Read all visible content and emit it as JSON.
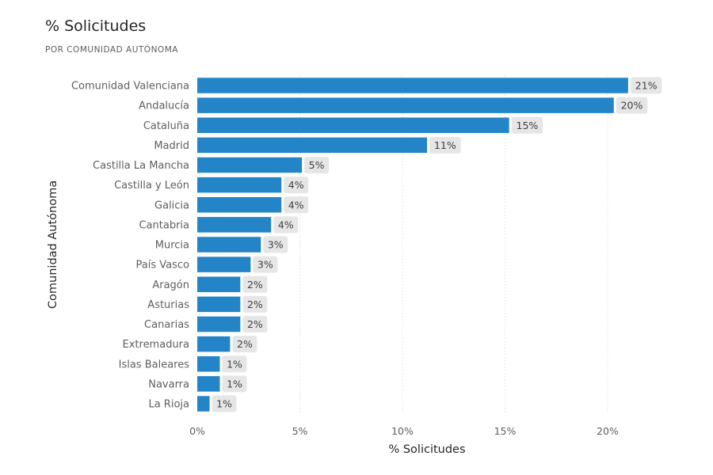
{
  "title": "% Solicitudes",
  "subtitle": "POR COMUNIDAD AUTÓNOMA",
  "colors": {
    "bar": "#2384c8",
    "label_bg": "#e6e6e6",
    "grid": "#e1e1e1"
  },
  "chart_data": {
    "type": "bar",
    "orientation": "horizontal",
    "categories": [
      "Comunidad Valenciana",
      "Andalucía",
      "Cataluña",
      "Madrid",
      "Castilla La Mancha",
      "Castilla y León",
      "Galicia",
      "Cantabria",
      "Murcia",
      "País Vasco",
      "Aragón",
      "Asturias",
      "Canarias",
      "Extremadura",
      "Islas Baleares",
      "Navarra",
      "La Rioja"
    ],
    "values": [
      21.0,
      20.3,
      15.2,
      11.2,
      5.1,
      4.1,
      4.1,
      3.6,
      3.1,
      2.6,
      2.1,
      2.1,
      2.1,
      1.6,
      1.1,
      1.1,
      0.6
    ],
    "data_labels": [
      "21%",
      "20%",
      "15%",
      "11%",
      "5%",
      "4%",
      "4%",
      "4%",
      "3%",
      "3%",
      "2%",
      "2%",
      "2%",
      "2%",
      "1%",
      "1%",
      "1%"
    ],
    "xlabel": "% Solicitudes",
    "ylabel": "Comunidad Autónoma",
    "xlim": [
      0,
      22
    ],
    "xticks": [
      0,
      5,
      10,
      15,
      20
    ],
    "xtick_labels": [
      "0%",
      "5%",
      "10%",
      "15%",
      "20%"
    ],
    "grid": true
  }
}
